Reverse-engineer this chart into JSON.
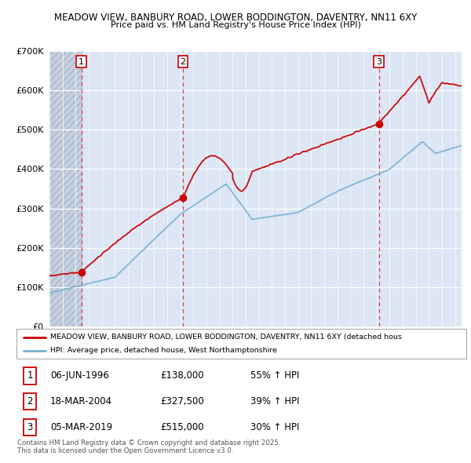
{
  "title1": "MEADOW VIEW, BANBURY ROAD, LOWER BODDINGTON, DAVENTRY, NN11 6XY",
  "title2": "Price paid vs. HM Land Registry's House Price Index (HPI)",
  "legend_line1": "MEADOW VIEW, BANBURY ROAD, LOWER BODDINGTON, DAVENTRY, NN11 6XY (detached hous",
  "legend_line2": "HPI: Average price, detached house, West Northamptonshire",
  "footer1": "Contains HM Land Registry data © Crown copyright and database right 2025.",
  "footer2": "This data is licensed under the Open Government Licence v3.0.",
  "sale_years": [
    1996.4384,
    2004.2055,
    2019.1726
  ],
  "sale_prices": [
    138000,
    327500,
    515000
  ],
  "sale_labels": [
    "1",
    "2",
    "3"
  ],
  "ylim": [
    0,
    700000
  ],
  "xlim_start": 1994.0,
  "xlim_end": 2025.5,
  "red_color": "#cc0000",
  "blue_color": "#7ab0d4",
  "bg_color": "#ffffff",
  "plot_bg": "#dce6f5",
  "hatch_color": "#c5d0e0"
}
